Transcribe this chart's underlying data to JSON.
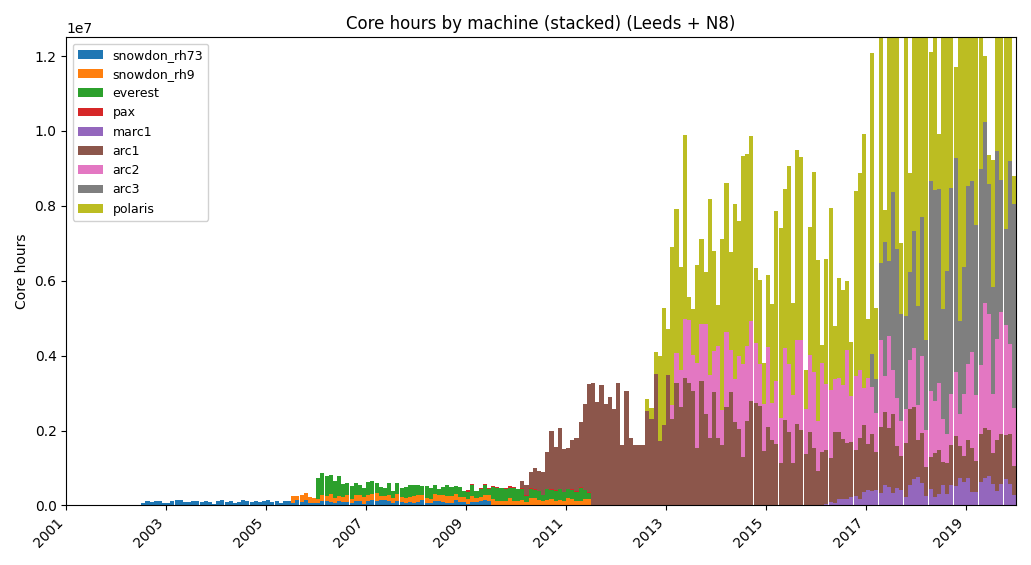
{
  "title": "Core hours by machine (stacked) (Leeds + N8)",
  "ylabel": "Core hours",
  "machines": [
    "snowdon_rh73",
    "snowdon_rh9",
    "everest",
    "pax",
    "marc1",
    "arc1",
    "arc2",
    "arc3",
    "polaris"
  ],
  "colors": [
    "#1f77b4",
    "#ff7f0e",
    "#2ca02c",
    "#d62728",
    "#9467bd",
    "#8c564b",
    "#e377c2",
    "#7f7f7f",
    "#bcbd22"
  ],
  "xlim": [
    2001,
    2020
  ],
  "ylim": [
    0,
    12500000.0
  ],
  "x_ticks": [
    2001,
    2003,
    2005,
    2007,
    2009,
    2011,
    2013,
    2015,
    2017,
    2019
  ],
  "figsize": [
    10.31,
    5.65
  ],
  "dpi": 100
}
